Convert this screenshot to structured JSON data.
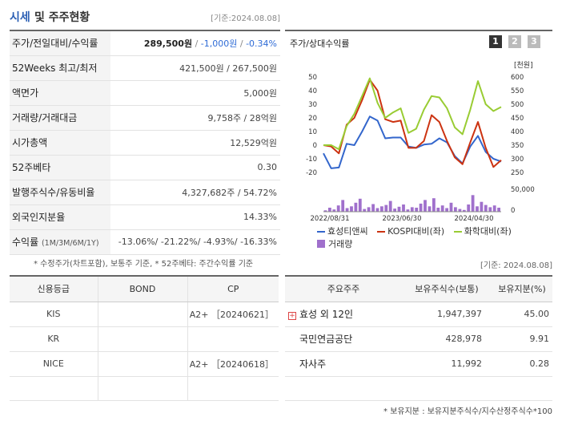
{
  "header": {
    "title_colored": "시세",
    "title_rest": "및 주주현황",
    "date": "[기준:2024.08.08]"
  },
  "stats": {
    "rows": [
      {
        "label": "주가/전일대비/수익률",
        "price": "289,500원",
        "sep1": " / ",
        "change": "-1,000원",
        "sep2": " / ",
        "rate": "-0.34%"
      },
      {
        "label": "52Weeks 최고/최저",
        "value": "421,500원 / 267,500원"
      },
      {
        "label": "액면가",
        "value": "5,000원"
      },
      {
        "label": "거래량/거래대금",
        "value": "9,758주 / 28억원"
      },
      {
        "label": "시가총액",
        "value": "12,529억원"
      },
      {
        "label": "52주베타",
        "value": "0.30"
      },
      {
        "label": "발행주식수/유동비율",
        "value": "4,327,682주 / 54.72%"
      },
      {
        "label": "외국인지분율",
        "value": "14.33%"
      },
      {
        "label": "수익률",
        "label_small": "(1M/3M/6M/1Y)",
        "value": "-13.06%/ -21.22%/ -4.93%/ -16.33%"
      }
    ],
    "note": "* 수정주가(차트포함), 보통주 기준, * 52주베타: 주간수익률 기준"
  },
  "chart": {
    "title": "주가/상대수익률",
    "pages": [
      "1",
      "2",
      "3"
    ],
    "active_page": "1",
    "legend": [
      "효성티앤씨",
      "KOSPI대비(좌)",
      "화학대비(좌)",
      "거래량"
    ],
    "colors": {
      "stock": "#3366cc",
      "kospi": "#cc3311",
      "chem": "#99cc33",
      "volume": "#a070cc"
    }
  },
  "chart_data": {
    "type": "line",
    "x_labels": [
      "2022/08/31",
      "2023/06/30",
      "2024/04/30"
    ],
    "left_axis": {
      "ticks": [
        "50",
        "40",
        "30",
        "20",
        "10",
        "0",
        "-10",
        "-20"
      ],
      "range": [
        -20,
        50
      ]
    },
    "right_axis": {
      "unit": "[천원]",
      "ticks": [
        "600",
        "550",
        "500",
        "450",
        "400",
        "350",
        "300",
        "250"
      ],
      "range": [
        250,
        600
      ]
    },
    "volume_axis": {
      "ticks": [
        "50,000",
        "0"
      ],
      "range": [
        0,
        50000
      ]
    },
    "series": [
      {
        "name": "효성티앤씨",
        "axis": "right",
        "values": [
          320,
          265,
          268,
          355,
          350,
          400,
          455,
          440,
          375,
          378,
          378,
          345,
          340,
          352,
          355,
          375,
          360,
          310,
          283,
          345,
          384,
          325,
          300,
          290
        ]
      },
      {
        "name": "KOSPI대비(좌)",
        "axis": "left",
        "values": [
          0,
          -1,
          -6,
          15,
          20,
          33,
          48,
          40,
          19,
          17,
          18,
          -2,
          -2,
          3,
          22,
          17,
          3,
          -9,
          -14,
          2,
          17,
          -2,
          -16,
          -11
        ]
      },
      {
        "name": "화학대비(좌)",
        "axis": "left",
        "values": [
          0,
          0,
          -3,
          14,
          23,
          36,
          49,
          31,
          20,
          24,
          27,
          9,
          12,
          26,
          36,
          35,
          27,
          13,
          8,
          26,
          47,
          30,
          25,
          28
        ]
      }
    ],
    "volume": [
      3000,
      9000,
      5000,
      14000,
      26000,
      8000,
      12000,
      20000,
      29000,
      6000,
      10000,
      17000,
      8000,
      12000,
      15000,
      24000,
      7000,
      11000,
      16000,
      5000,
      10000,
      9000,
      18000,
      26000,
      12000,
      30000,
      9000,
      14000,
      8000,
      20000,
      10000,
      6000,
      4000,
      16000,
      37000,
      12000,
      22000,
      15000,
      10000,
      14000,
      9000
    ]
  },
  "date2": "[기준: 2024.08.08]",
  "credit": {
    "headers": [
      "신용등급",
      "BOND",
      "CP"
    ],
    "rows": [
      {
        "agency": "KIS",
        "bond": "",
        "cp": "A2+ ［20240621］"
      },
      {
        "agency": "KR",
        "bond": "",
        "cp": ""
      },
      {
        "agency": "NICE",
        "bond": "",
        "cp": "A2+ ［20240618］"
      }
    ]
  },
  "holders": {
    "headers": [
      "주요주주",
      "보유주식수(보통)",
      "보유지분(%)"
    ],
    "rows": [
      {
        "name": "효성 외 12인",
        "shares": "1,947,397",
        "pct": "45.00",
        "expandable": true
      },
      {
        "name": "국민연금공단",
        "shares": "428,978",
        "pct": "9.91",
        "expandable": false
      },
      {
        "name": "자사주",
        "shares": "11,992",
        "pct": "0.28",
        "expandable": false
      }
    ],
    "note": "* 보유지분 : 보유지분주식수/지수산정주식수*100"
  }
}
